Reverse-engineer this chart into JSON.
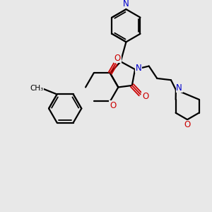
{
  "bg": "#e8e8e8",
  "bc": "#000000",
  "nc": "#0000cc",
  "oc": "#cc0000",
  "lw": 1.6,
  "lw_thin": 1.3,
  "fs": 8.5,
  "figsize": [
    3.0,
    3.0
  ],
  "dpi": 100
}
